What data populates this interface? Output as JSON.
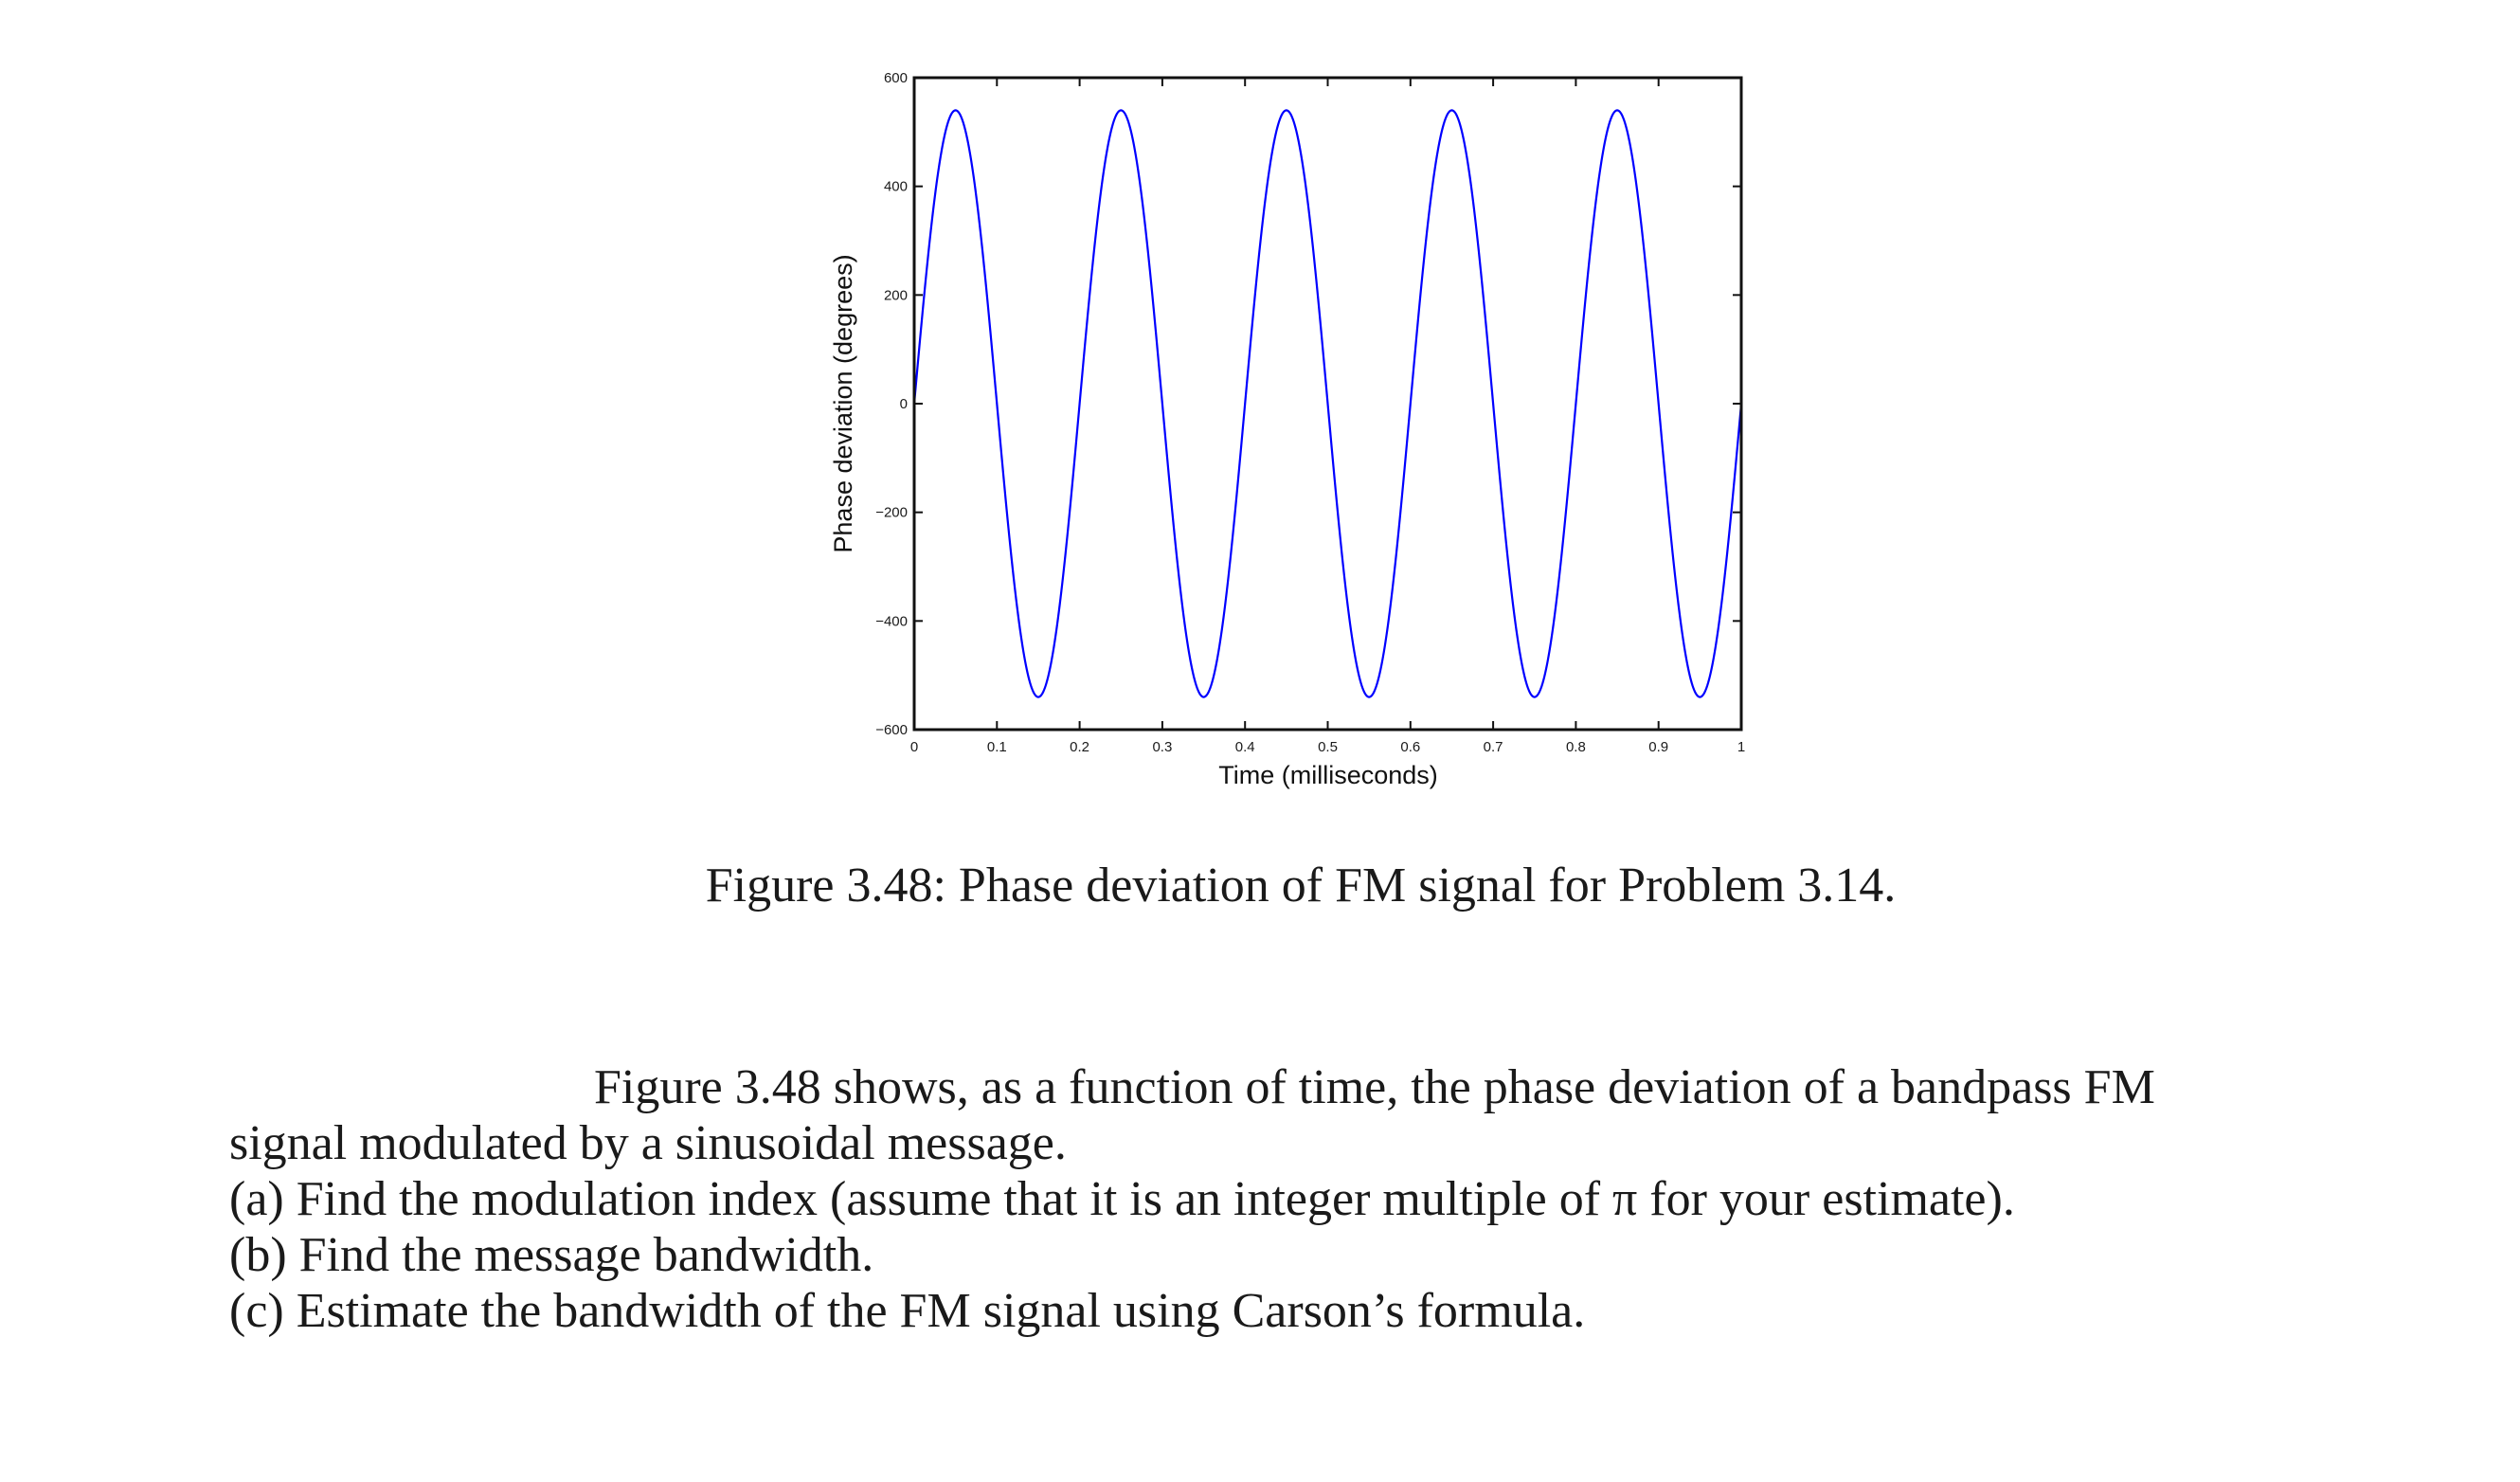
{
  "figure": {
    "ylabel": "Phase deviation (degrees)",
    "xlabel": "Time (milliseconds)",
    "line_color": "#0000ff",
    "xticks": [
      "0",
      "0.1",
      "0.2",
      "0.3",
      "0.4",
      "0.5",
      "0.6",
      "0.7",
      "0.8",
      "0.9",
      "1"
    ],
    "yticks": [
      "600",
      "400",
      "200",
      "0",
      "-200",
      "-400",
      "-600"
    ]
  },
  "caption": "Figure 3.48: Phase deviation of FM signal for Problem 3.14.",
  "problem": {
    "intro_line1": "Figure 3.48 shows, as a function of time, the phase deviation of a bandpass FM",
    "intro_line2": "signal modulated by a sinusoidal message.",
    "part_a": "(a) Find the modulation index (assume that it is an integer multiple of π for your estimate).",
    "part_b": "(b) Find the message bandwidth.",
    "part_c": "(c) Estimate the bandwidth of the FM signal using Carson’s formula."
  },
  "chart_data": {
    "type": "line",
    "title": "",
    "xlabel": "Time (milliseconds)",
    "ylabel": "Phase deviation (degrees)",
    "xlim": [
      0,
      1
    ],
    "ylim": [
      -600,
      600
    ],
    "grid": false,
    "legend": null,
    "xticks": [
      0,
      0.1,
      0.2,
      0.3,
      0.4,
      0.5,
      0.6,
      0.7,
      0.8,
      0.9,
      1
    ],
    "yticks": [
      -600,
      -400,
      -200,
      0,
      200,
      400,
      600
    ],
    "series": [
      {
        "name": "phase deviation",
        "color": "#0000ff",
        "function": "540*sin(2*pi*5*t)",
        "amplitude_deg": 540,
        "frequency_per_ms": 5,
        "x": [
          0,
          0.05,
          0.1,
          0.15,
          0.2,
          0.25,
          0.3,
          0.35,
          0.4,
          0.45,
          0.5,
          0.55,
          0.6,
          0.65,
          0.7,
          0.75,
          0.8,
          0.85,
          0.9,
          0.95,
          1.0
        ],
        "values": [
          0,
          540,
          0,
          -540,
          0,
          540,
          0,
          -540,
          0,
          540,
          0,
          -540,
          0,
          540,
          0,
          -540,
          0,
          540,
          0,
          -540,
          0
        ]
      }
    ]
  }
}
